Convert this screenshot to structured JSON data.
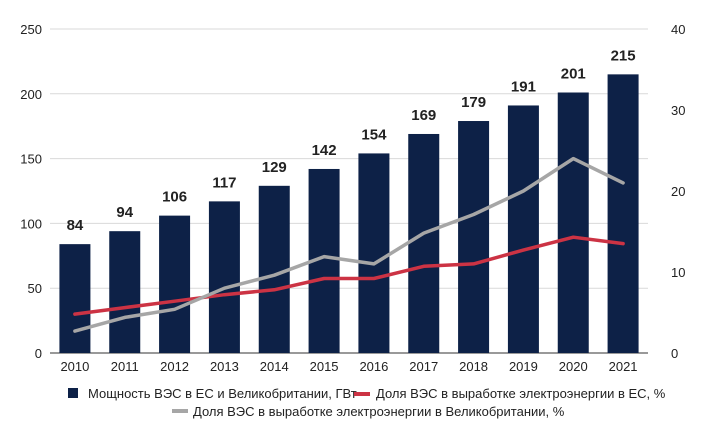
{
  "chart_data": {
    "type": "bar",
    "categories": [
      "2010",
      "2011",
      "2012",
      "2013",
      "2014",
      "2015",
      "2016",
      "2017",
      "2018",
      "2019",
      "2020",
      "2021"
    ],
    "series": [
      {
        "name": "Мощность ВЭС в ЕС и Великобритании, ГВт",
        "kind": "bar",
        "axis": "left",
        "color": "#0d2147",
        "values": [
          84,
          94,
          106,
          117,
          129,
          142,
          154,
          169,
          179,
          191,
          201,
          215
        ]
      },
      {
        "name": "Доля ВЭС в выработке электроэнергии в ЕС, %",
        "kind": "line",
        "axis": "right",
        "color": "#cc3344",
        "values": [
          4.8,
          5.6,
          6.4,
          7.2,
          7.8,
          9.2,
          9.2,
          10.7,
          11.0,
          12.7,
          14.3,
          13.5
        ]
      },
      {
        "name": "Доля ВЭС в выработке электроэнергии в Великобритании, %",
        "kind": "line",
        "axis": "right",
        "color": "#a6a6a6",
        "values": [
          2.7,
          4.4,
          5.4,
          8.0,
          9.6,
          11.9,
          11.0,
          14.8,
          17.1,
          20.0,
          24.0,
          21.0
        ]
      }
    ],
    "y_left": {
      "ylim": [
        0,
        250
      ],
      "ticks": [
        "0",
        "50",
        "100",
        "150",
        "200",
        "250"
      ]
    },
    "y_right": {
      "ylim": [
        0,
        40
      ],
      "ticks": [
        "0",
        "10",
        "20",
        "30",
        "40"
      ]
    },
    "data_labels": [
      "84",
      "94",
      "106",
      "117",
      "129",
      "142",
      "154",
      "169",
      "179",
      "191",
      "201",
      "215"
    ],
    "legend_position": "bottom",
    "grid": "horizontal"
  }
}
